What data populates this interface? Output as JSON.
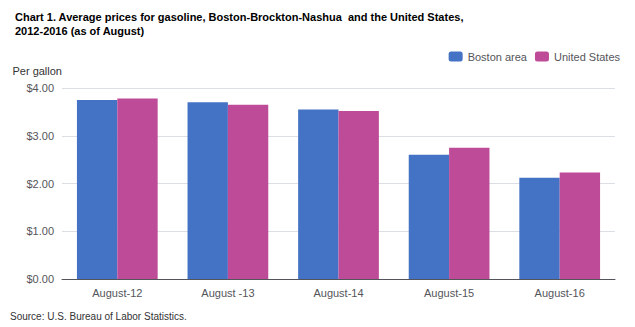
{
  "chart_data": {
    "type": "bar",
    "title": "Chart 1. Average prices for gasoline, Boston-Brockton-Nashua  and the United States,",
    "subtitle": "2012-2016 (as of August)",
    "y_label": "Per gallon",
    "source": "Source: U.S. Bureau of Labor Statistics.",
    "categories": [
      "August-12",
      "August -13",
      "August-14",
      "August-15",
      "August-16"
    ],
    "series": [
      {
        "name": "Boston area",
        "color": "#4472C4",
        "values": [
          3.75,
          3.7,
          3.55,
          2.6,
          2.12
        ]
      },
      {
        "name": "United States",
        "color": "#BE4B98",
        "values": [
          3.78,
          3.65,
          3.52,
          2.75,
          2.23
        ]
      }
    ],
    "ylim": [
      0.0,
      4.0
    ],
    "yticks": [
      {
        "value": 0.0,
        "label": "$0.00"
      },
      {
        "value": 1.0,
        "label": "$1.00"
      },
      {
        "value": 2.0,
        "label": "$2.00"
      },
      {
        "value": 3.0,
        "label": "$3.00"
      },
      {
        "value": 4.0,
        "label": "$4.00"
      }
    ],
    "grid": true,
    "legend": "upper right"
  }
}
